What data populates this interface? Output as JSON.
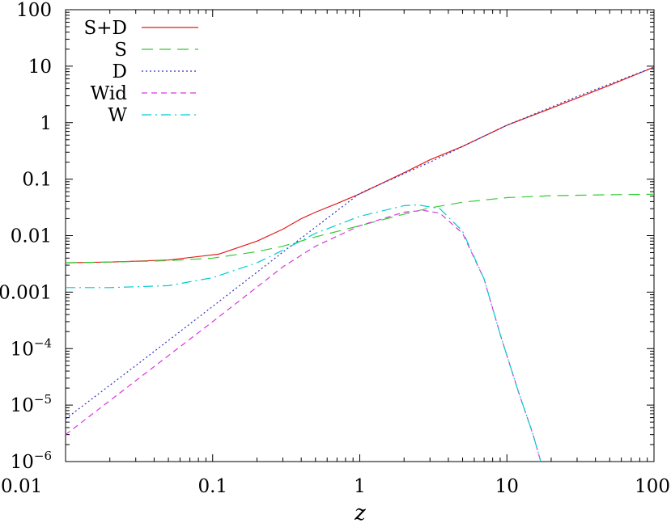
{
  "chart_data": {
    "type": "line",
    "title": "",
    "xlabel": "z",
    "ylabel": "",
    "xscale": "log",
    "yscale": "log",
    "xlim": [
      0.01,
      100
    ],
    "ylim": [
      1e-06,
      100
    ],
    "grid": false,
    "legend_position": "top-left",
    "x_ticks": [
      {
        "value": 0.01,
        "label": "0.01"
      },
      {
        "value": 0.1,
        "label": "0.1"
      },
      {
        "value": 1,
        "label": "1"
      },
      {
        "value": 10,
        "label": "10"
      },
      {
        "value": 100,
        "label": "100"
      }
    ],
    "y_ticks": [
      {
        "value": 100,
        "base": "100",
        "exp": ""
      },
      {
        "value": 10,
        "base": "10",
        "exp": ""
      },
      {
        "value": 1,
        "base": "1",
        "exp": ""
      },
      {
        "value": 0.1,
        "base": "0.1",
        "exp": ""
      },
      {
        "value": 0.01,
        "base": "0.01",
        "exp": ""
      },
      {
        "value": 0.001,
        "base": "0.001",
        "exp": ""
      },
      {
        "value": 0.0001,
        "base": "10",
        "exp": "−4"
      },
      {
        "value": 1e-05,
        "base": "10",
        "exp": "−5"
      },
      {
        "value": 1e-06,
        "base": "10",
        "exp": "−6"
      }
    ],
    "series": [
      {
        "name": "S+D",
        "color": "#e41a1c",
        "dash": "solid",
        "points": [
          [
            0.01,
            0.0033
          ],
          [
            0.02,
            0.0034
          ],
          [
            0.05,
            0.0037
          ],
          [
            0.11,
            0.0047
          ],
          [
            0.2,
            0.008
          ],
          [
            0.3,
            0.013
          ],
          [
            0.4,
            0.02
          ],
          [
            0.5,
            0.026
          ],
          [
            0.7,
            0.037
          ],
          [
            1,
            0.055
          ],
          [
            2,
            0.13
          ],
          [
            3,
            0.22
          ],
          [
            5,
            0.38
          ],
          [
            10,
            0.9
          ],
          [
            20,
            1.8
          ],
          [
            50,
            4.6
          ],
          [
            100,
            9.6
          ]
        ]
      },
      {
        "name": "S",
        "color": "#33cc33",
        "dash": "long",
        "points": [
          [
            0.01,
            0.0033
          ],
          [
            0.02,
            0.0034
          ],
          [
            0.05,
            0.0036
          ],
          [
            0.1,
            0.004
          ],
          [
            0.2,
            0.0052
          ],
          [
            0.3,
            0.0065
          ],
          [
            0.5,
            0.0095
          ],
          [
            1,
            0.015
          ],
          [
            2,
            0.024
          ],
          [
            3,
            0.031
          ],
          [
            5,
            0.039
          ],
          [
            10,
            0.047
          ],
          [
            20,
            0.051
          ],
          [
            50,
            0.053
          ],
          [
            100,
            0.054
          ]
        ]
      },
      {
        "name": "D",
        "color": "#3333bb",
        "dash": "dotted",
        "points": [
          [
            0.01,
            5.7e-06
          ],
          [
            0.03,
            5e-05
          ],
          [
            0.1,
            0.00056
          ],
          [
            0.3,
            0.0051
          ],
          [
            1,
            0.056
          ],
          [
            3,
            0.2
          ],
          [
            10,
            0.9
          ],
          [
            30,
            2.9
          ],
          [
            100,
            9.6
          ]
        ]
      },
      {
        "name": "Wid",
        "color": "#dd33dd",
        "dash": "dashed",
        "points": [
          [
            0.01,
            3e-06
          ],
          [
            0.03,
            2.7e-05
          ],
          [
            0.1,
            0.0003
          ],
          [
            0.3,
            0.0028
          ],
          [
            0.5,
            0.0065
          ],
          [
            1,
            0.015
          ],
          [
            2,
            0.026
          ],
          [
            2.7,
            0.028
          ],
          [
            3.5,
            0.025
          ],
          [
            5,
            0.011
          ],
          [
            7,
            0.0017
          ],
          [
            9,
            0.00018
          ],
          [
            12,
            1.7e-05
          ],
          [
            15,
            3.1e-06
          ],
          [
            17,
            1e-06
          ]
        ]
      },
      {
        "name": "W",
        "color": "#00cccc",
        "dash": "dashdot",
        "points": [
          [
            0.01,
            0.0012
          ],
          [
            0.02,
            0.0012
          ],
          [
            0.05,
            0.0013
          ],
          [
            0.1,
            0.0018
          ],
          [
            0.2,
            0.0033
          ],
          [
            0.3,
            0.0055
          ],
          [
            0.5,
            0.011
          ],
          [
            1,
            0.022
          ],
          [
            2,
            0.034
          ],
          [
            2.5,
            0.035
          ],
          [
            3.5,
            0.03
          ],
          [
            5,
            0.012
          ],
          [
            7,
            0.0017
          ],
          [
            9,
            0.00018
          ],
          [
            12,
            1.7e-05
          ],
          [
            15,
            3.1e-06
          ],
          [
            17,
            1e-06
          ]
        ]
      }
    ]
  }
}
